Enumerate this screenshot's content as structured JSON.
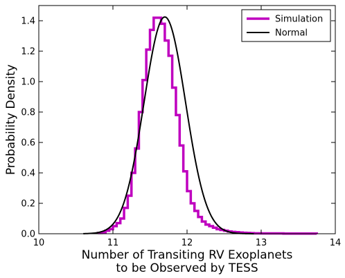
{
  "chart_data": {
    "type": "line",
    "title": "",
    "xlabel_lines": [
      "Number of Transiting RV Exoplanets",
      "to be Observed by TESS"
    ],
    "ylabel": "Probability Density",
    "xlim": [
      10,
      14
    ],
    "ylim": [
      0,
      1.5
    ],
    "xticks": [
      10,
      11,
      12,
      13,
      14
    ],
    "yticks": [
      0.0,
      0.2,
      0.4,
      0.6,
      0.8,
      1.0,
      1.2,
      1.4
    ],
    "grid": false,
    "legend_position": "top-right",
    "series": [
      {
        "name": "Simulation",
        "style": "step-histogram",
        "color": "#bf00bf",
        "bin_edges": [
          10.8,
          10.85,
          10.9,
          10.95,
          11.0,
          11.05,
          11.1,
          11.15,
          11.2,
          11.25,
          11.3,
          11.35,
          11.4,
          11.45,
          11.5,
          11.55,
          11.6,
          11.65,
          11.7,
          11.75,
          11.8,
          11.85,
          11.9,
          11.95,
          12.0,
          12.05,
          12.1,
          12.15,
          12.2,
          12.25,
          12.3,
          12.35,
          12.4,
          12.45,
          12.5,
          12.55,
          12.6,
          12.65,
          12.7,
          12.75,
          12.8,
          12.85,
          12.9,
          12.95,
          13.0,
          13.1,
          13.2,
          13.3,
          13.4,
          13.5,
          13.6,
          13.7,
          13.75
        ],
        "densities": [
          0.005,
          0.01,
          0.02,
          0.03,
          0.05,
          0.07,
          0.1,
          0.17,
          0.25,
          0.4,
          0.56,
          0.8,
          1.01,
          1.21,
          1.34,
          1.42,
          1.42,
          1.38,
          1.27,
          1.17,
          0.96,
          0.78,
          0.58,
          0.41,
          0.28,
          0.2,
          0.15,
          0.11,
          0.08,
          0.06,
          0.05,
          0.04,
          0.03,
          0.025,
          0.02,
          0.015,
          0.012,
          0.01,
          0.008,
          0.006,
          0.005,
          0.004,
          0.003,
          0.003,
          0.002,
          0.002,
          0.002,
          0.001,
          0.001,
          0.001,
          0.001,
          0.001
        ]
      },
      {
        "name": "Normal",
        "style": "curve",
        "color": "#000000",
        "mean": 11.7,
        "std": 0.28,
        "x_range": [
          10.6,
          12.9
        ]
      }
    ]
  }
}
